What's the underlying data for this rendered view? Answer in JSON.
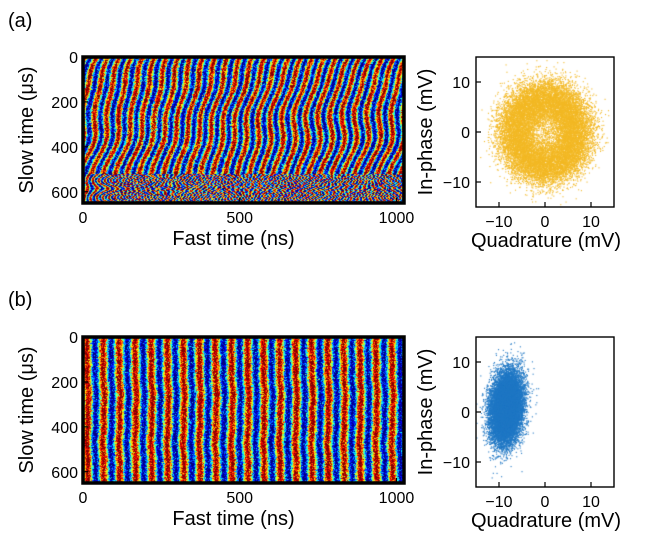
{
  "chart_data": [
    {
      "panel": "(a)",
      "type": "heatmap",
      "xlabel": "Fast time (ns)",
      "ylabel": "Slow time (μs)",
      "xlim": [
        0,
        1024
      ],
      "ylim": [
        0,
        650
      ],
      "y_inverted": true,
      "xticks": [
        0,
        500,
        1000
      ],
      "yticks": [
        0,
        200,
        400,
        600
      ],
      "colormap": "jet",
      "pattern": "fringes that drift and bend with slow time; unstable phase"
    },
    {
      "panel": "(a)",
      "type": "scatter",
      "xlabel": "Quadrature (mV)",
      "ylabel": "In-phase (mV)",
      "xlim": [
        -15,
        15
      ],
      "ylim": [
        -15,
        15
      ],
      "xticks": [
        -10,
        0,
        10
      ],
      "yticks": [
        -10,
        0,
        10
      ],
      "color": "#f2b824",
      "distribution": "ring",
      "center": [
        0,
        0
      ],
      "ring_radius": 7,
      "ring_spread": 2.3
    },
    {
      "panel": "(b)",
      "type": "heatmap",
      "xlabel": "Fast time (ns)",
      "ylabel": "Slow time (μs)",
      "xlim": [
        0,
        1024
      ],
      "ylim": [
        0,
        650
      ],
      "y_inverted": true,
      "xticks": [
        0,
        500,
        1000
      ],
      "yticks": [
        0,
        200,
        400,
        600
      ],
      "colormap": "jet",
      "pattern": "nearly vertical stable fringes, about 20 periods over the trace"
    },
    {
      "panel": "(b)",
      "type": "scatter",
      "xlabel": "Quadrature (mV)",
      "ylabel": "In-phase (mV)",
      "xlim": [
        -15,
        15
      ],
      "ylim": [
        -15,
        15
      ],
      "xticks": [
        -10,
        0,
        10
      ],
      "yticks": [
        -10,
        0,
        10
      ],
      "color": "#1f77c4",
      "distribution": "cluster",
      "center": [
        -8.5,
        1
      ],
      "spread": [
        1.7,
        3.4
      ]
    }
  ],
  "colors": {
    "ring": "#f2b824",
    "cluster": "#1f77c4",
    "axis": "#000000"
  }
}
